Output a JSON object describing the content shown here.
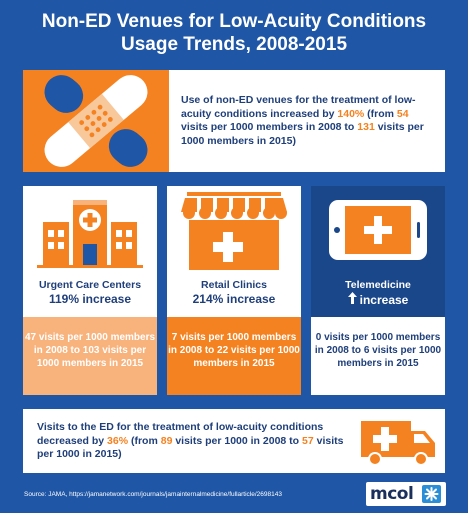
{
  "title": {
    "line1": "Non-ED Venues for Low-Acuity Conditions",
    "line2": "Usage Trends, 2008-2015"
  },
  "hero": {
    "icon": "bandage-icon",
    "t1": "Use of non-ED venues for the treatment of low-acuity conditions increased by ",
    "pct": "140%",
    "t2": " (from ",
    "v2008": "54",
    "t3": " visits per 1000 members in 2008 to ",
    "v2015": "131",
    "t4": " visits per 1000 members in 2015)"
  },
  "cards": [
    {
      "icon": "hospital-building-icon",
      "name": "Urgent Care Centers",
      "increase": "119% increase",
      "detail": "47 visits per 1000 members in 2008 to 103 visits per 1000 members in 2015"
    },
    {
      "icon": "retail-store-icon",
      "name": "Retail Clinics",
      "increase": "214% increase",
      "detail": "7 visits per 1000 members in 2008 to 22 visits per 1000 members in 2015"
    },
    {
      "icon": "smartphone-medical-icon",
      "name": "Telemedicine",
      "increase": "increase",
      "arrow": "up-arrow-icon",
      "detail": "0 visits per 1000 members in 2008 to 6 visits per 1000 members in 2015"
    }
  ],
  "ed": {
    "icon": "ambulance-icon",
    "t1": "Visits to the ED for the treatment of low-acuity conditions decreased by ",
    "pct": "36%",
    "t2": " (from ",
    "v2008": "89",
    "t3": " visits per 1000 in 2008 to ",
    "v2015": "57",
    "t4": " visits per 1000 in 2015)"
  },
  "source": "Source:   JAMA, https://jamanetwork.com/journals/jamainternalmedicine/fullarticle/2698143",
  "logo": {
    "text": "mcol",
    "mark": "mcol-logo-mark-icon"
  },
  "colors": {
    "background": "#1f56a6",
    "accent": "#f58220",
    "accent_light": "#f8b27c",
    "text_dark": "#1f3f7a"
  }
}
